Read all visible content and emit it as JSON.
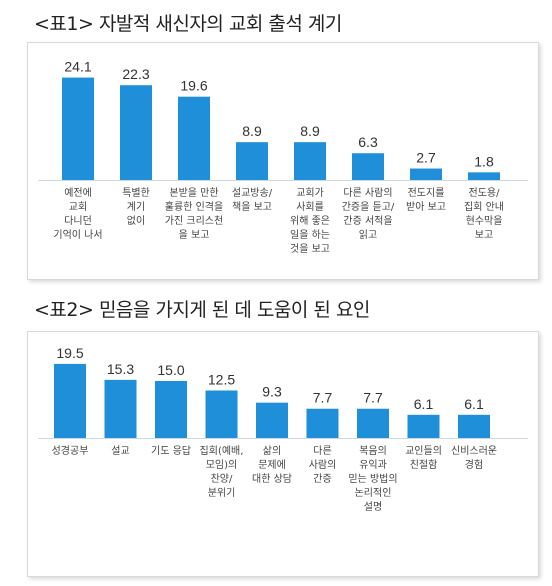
{
  "chart_data": [
    {
      "type": "bar",
      "title": "<표1> 자발적 새신자의 교회 출석 계기",
      "categories": [
        [
          "예전에",
          "교회",
          "다니던",
          "기억이 나서"
        ],
        [
          "특별한",
          "계기",
          "없이"
        ],
        [
          "본받을 만한",
          "훌륭한 인격을",
          "가진 크리스천",
          "을 보고"
        ],
        [
          "설교방송/",
          "책을 보고"
        ],
        [
          "교회가",
          "사회를",
          "위해 좋은",
          "일을 하는",
          "것을 보고"
        ],
        [
          "다른 사람의",
          "간증을 듣고/",
          "간증 서적을",
          "읽고"
        ],
        [
          "전도지를",
          "받아 보고"
        ],
        [
          "전도용/",
          "집회 안내",
          "현수막을",
          "보고"
        ]
      ],
      "values": [
        24.1,
        22.3,
        19.6,
        8.9,
        8.9,
        6.3,
        2.7,
        1.8
      ],
      "value_labels": [
        "24.1",
        "22.3",
        "19.6",
        "8.9",
        "8.9",
        "6.3",
        "2.7",
        "1.8"
      ],
      "bar_color": "#1e8fd8",
      "grid": false
    },
    {
      "type": "bar",
      "title": "<표2> 믿음을 가지게 된 데 도움이 된 요인",
      "categories": [
        [
          "성경공부"
        ],
        [
          "설교"
        ],
        [
          "기도 응답"
        ],
        [
          "집회(예배,",
          "모임)의",
          "찬양/",
          "분위기"
        ],
        [
          "삶의",
          "문제에",
          "대한 상담"
        ],
        [
          "다른",
          "사람의",
          "간증"
        ],
        [
          "복음의",
          "유익과",
          "믿는 방법의",
          "논리적인",
          "설명"
        ],
        [
          "교인들의",
          "친절함"
        ],
        [
          "신비스러운",
          "경험"
        ]
      ],
      "values": [
        19.5,
        15.3,
        15.0,
        12.5,
        9.3,
        7.7,
        7.7,
        6.1,
        6.1
      ],
      "value_labels": [
        "19.5",
        "15.3",
        "15.0",
        "12.5",
        "9.3",
        "7.7",
        "7.7",
        "6.1",
        "6.1"
      ],
      "bar_color": "#1e8fd8",
      "grid": false
    }
  ]
}
